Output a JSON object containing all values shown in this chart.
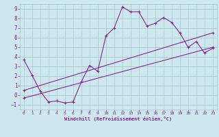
{
  "xlabel": "Windchill (Refroidissement éolien,°C)",
  "bg_color": "#cce8ee",
  "line_color": "#882299",
  "grid_color": "#aacccc",
  "xlim": [
    -0.5,
    23.5
  ],
  "ylim": [
    -1.5,
    9.5
  ],
  "xticks": [
    0,
    1,
    2,
    3,
    4,
    5,
    6,
    7,
    8,
    9,
    10,
    11,
    12,
    13,
    14,
    15,
    16,
    17,
    18,
    19,
    20,
    21,
    22,
    23
  ],
  "yticks": [
    -1,
    0,
    1,
    2,
    3,
    4,
    5,
    6,
    7,
    8,
    9
  ],
  "line1_x": [
    0,
    1,
    2,
    3,
    4,
    5,
    6,
    7,
    8,
    9,
    10,
    11,
    12,
    13,
    14,
    15,
    16,
    17,
    18,
    19,
    20,
    21,
    22,
    23
  ],
  "line1_y": [
    3.7,
    2.1,
    0.4,
    -0.7,
    -0.6,
    -0.8,
    -0.7,
    1.4,
    3.1,
    2.5,
    6.2,
    7.0,
    9.2,
    8.7,
    8.7,
    7.2,
    7.5,
    8.1,
    7.6,
    6.5,
    5.0,
    5.6,
    4.4,
    4.9
  ],
  "line2_x": [
    0,
    23
  ],
  "line2_y": [
    0.5,
    6.5
  ],
  "line3_x": [
    0,
    23
  ],
  "line3_y": [
    -0.3,
    5.0
  ],
  "marker": "+"
}
